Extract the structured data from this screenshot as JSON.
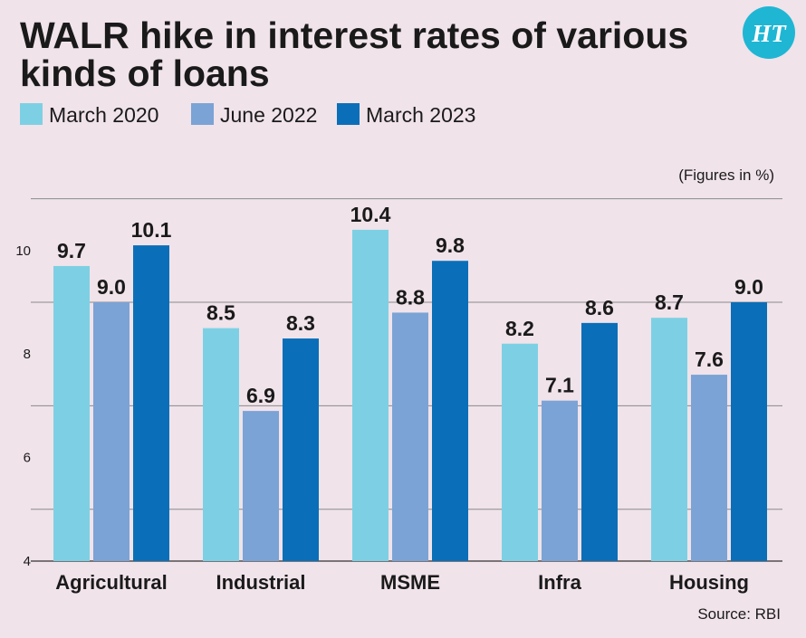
{
  "logo_text": "HT",
  "colors": {
    "background": "#f0e3ea",
    "grid": "#8a8a8a",
    "logo": "#1fb6d4"
  },
  "chart_data": {
    "type": "bar",
    "title": "WALR hike in interest rates of various kinds of loans",
    "title_lines": [
      "WALR hike in interest rates of various",
      "kinds of loans"
    ],
    "categories": [
      "Agricultural",
      "Industrial",
      "MSME",
      "Infra",
      "Housing"
    ],
    "series": [
      {
        "name": "March 2020",
        "color": "#7dd0e3",
        "values": [
          9.7,
          8.5,
          10.4,
          8.2,
          8.7
        ]
      },
      {
        "name": "June 2022",
        "color": "#7ba3d5",
        "values": [
          9.0,
          6.9,
          8.8,
          7.1,
          7.6
        ]
      },
      {
        "name": "March 2023",
        "color": "#0a6fb8",
        "values": [
          10.1,
          8.3,
          9.8,
          8.6,
          9.0
        ]
      }
    ],
    "data_labels": [
      [
        "9.7",
        "8.5",
        "10.4",
        "8.2",
        "8.7"
      ],
      [
        "9.0",
        "6.9",
        "8.8",
        "7.1",
        "7.6"
      ],
      [
        "10.1",
        "8.3",
        "9.8",
        "8.6",
        "9.0"
      ]
    ],
    "yticks": [
      4,
      6,
      8,
      10
    ],
    "ytick_labels": [
      "4",
      "6",
      "8",
      "10"
    ],
    "ylim": [
      4,
      12
    ],
    "grid": true,
    "legend_position": "top-left",
    "xlabel": "",
    "ylabel": "",
    "units_note": "(Figures in %)",
    "source": "Source: RBI"
  }
}
